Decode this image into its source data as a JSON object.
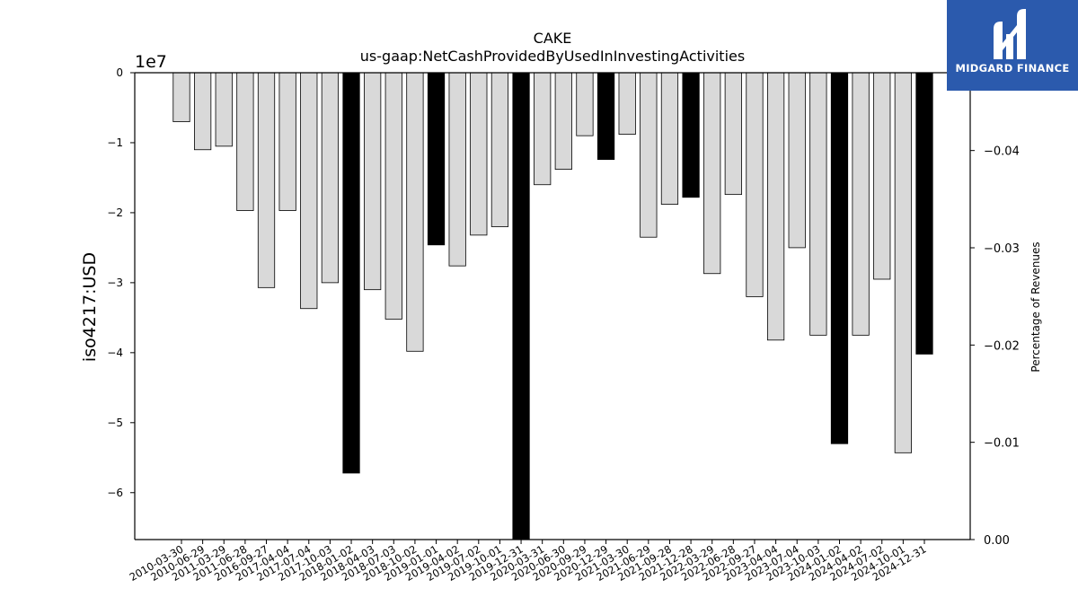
{
  "chart_data": {
    "type": "bar",
    "title": "CAKE",
    "subtitle": "us-gaap:NetCashProvidedByUsedInInvestingActivities",
    "ylabel": "iso4217:USD",
    "y_offset_text": "1e7",
    "y2label": "Percentage of Revenues",
    "ylim": [
      -66700000,
      0
    ],
    "y2lim": [
      0.0,
      -0.048
    ],
    "grid": false,
    "legend": "none",
    "categories": [
      "2010-03-30",
      "2010-06-29",
      "2011-03-29",
      "2011-06-28",
      "2016-09-27",
      "2017-04-04",
      "2017-07-04",
      "2017-10-03",
      "2018-01-02",
      "2018-04-03",
      "2018-07-03",
      "2018-10-02",
      "2019-01-01",
      "2019-04-02",
      "2019-07-02",
      "2019-10-01",
      "2019-12-31",
      "2020-03-31",
      "2020-06-30",
      "2020-09-29",
      "2020-12-29",
      "2021-03-30",
      "2021-06-29",
      "2021-09-28",
      "2021-12-28",
      "2022-03-29",
      "2022-06-28",
      "2022-09-27",
      "2023-04-04",
      "2023-07-04",
      "2023-10-03",
      "2024-01-02",
      "2024-04-02",
      "2024-07-02",
      "2024-10-01",
      "2024-12-31"
    ],
    "values": [
      -7000000,
      -11000000,
      -10500000,
      -19700000,
      -30700000,
      -19700000,
      -33700000,
      -30000000,
      -57200000,
      -31000000,
      -35200000,
      -39800000,
      -24600000,
      -27600000,
      -23200000,
      -22000000,
      -66700000,
      -16000000,
      -13800000,
      -9000000,
      -12400000,
      -8800000,
      -23500000,
      -18800000,
      -17800000,
      -28700000,
      -17400000,
      -32000000,
      -38200000,
      -25000000,
      -37500000,
      -53000000,
      -37500000,
      -29500000,
      -54300000,
      -40200000
    ],
    "annual": [
      false,
      false,
      false,
      false,
      false,
      false,
      false,
      false,
      true,
      false,
      false,
      false,
      true,
      false,
      false,
      false,
      true,
      false,
      false,
      false,
      true,
      false,
      false,
      false,
      true,
      false,
      false,
      false,
      false,
      false,
      false,
      true,
      false,
      false,
      false,
      true
    ],
    "yticks": [
      0,
      -1,
      -2,
      -3,
      -4,
      -5,
      -6
    ],
    "ytick_labels": [
      "0",
      "−1",
      "−2",
      "−3",
      "−4",
      "−5",
      "−6"
    ],
    "y2ticks": [
      -0.04,
      -0.03,
      -0.02,
      -0.01,
      0.0
    ],
    "y2tick_labels": [
      "−0.04",
      "−0.03",
      "−0.02",
      "−0.01",
      "0.00"
    ],
    "colors": {
      "quarter_bar": "#d9d9d9",
      "annual_bar": "#000000",
      "edge": "#000000"
    }
  },
  "brand": {
    "name": "MIDGARD FINANCE",
    "icon": "midgard-logo-icon",
    "bg_color": "#2b5aad"
  }
}
